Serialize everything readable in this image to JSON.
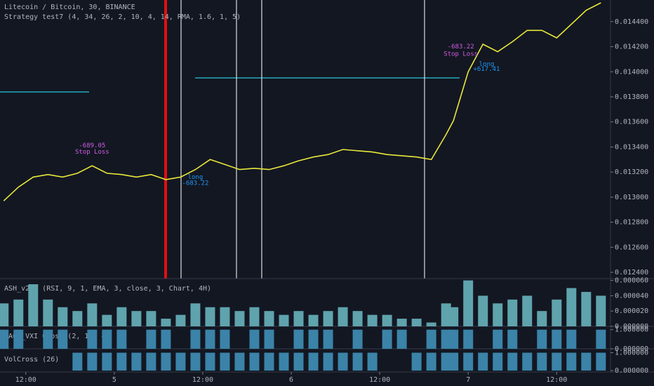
{
  "chart_data": [
    {
      "type": "line",
      "title": "Litecoin / Bitcoin, 30, BINANCE",
      "subtitle": "Strategy test7 (4, 34, 26, 2, 10, 4, 14, RMA, 1.6, 1, 5)",
      "x": [
        -15,
        -13,
        -11,
        -9,
        -7,
        -5,
        -3,
        -1,
        1,
        3,
        5,
        7,
        9,
        11,
        13,
        15,
        17,
        19,
        21,
        23,
        25,
        27,
        29,
        31,
        33,
        35,
        37,
        39,
        41,
        43,
        45,
        46,
        48,
        50,
        52,
        54,
        56,
        58,
        60,
        62,
        64,
        66
      ],
      "values": [
        0.01297,
        0.01308,
        0.01316,
        0.01318,
        0.01316,
        0.01319,
        0.01325,
        0.01319,
        0.01318,
        0.01316,
        0.01318,
        0.01314,
        0.01316,
        0.01322,
        0.0133,
        0.01326,
        0.01322,
        0.01323,
        0.01322,
        0.01325,
        0.01329,
        0.01332,
        0.01334,
        0.01338,
        0.01337,
        0.01336,
        0.01334,
        0.01333,
        0.01332,
        0.0133,
        0.0135,
        0.01361,
        0.014,
        0.01422,
        0.01416,
        0.01424,
        0.01433,
        0.01433,
        0.01427,
        0.01438,
        0.01449,
        0.01455
      ],
      "color": "#e8e83a",
      "xlim": [
        -15.5,
        67.3
      ],
      "ylim": [
        0.01235,
        0.01455
      ],
      "yticks": [
        {
          "value": 0.0124,
          "label": "0.012400"
        },
        {
          "value": 0.0126,
          "label": "0.012600"
        },
        {
          "value": 0.0128,
          "label": "0.012800"
        },
        {
          "value": 0.013,
          "label": "0.013000"
        },
        {
          "value": 0.0132,
          "label": "0.013200"
        },
        {
          "value": 0.0134,
          "label": "0.013400"
        },
        {
          "value": 0.0136,
          "label": "0.013600"
        },
        {
          "value": 0.0138,
          "label": "0.013800"
        },
        {
          "value": 0.014,
          "label": "0.014000"
        },
        {
          "value": 0.0142,
          "label": "0.014200"
        },
        {
          "value": 0.0144,
          "label": "0.014400"
        }
      ],
      "annotations": [
        {
          "text": "-689.05",
          "x": -3,
          "y": 0.01341,
          "color": "#d05ce3"
        },
        {
          "text": "Stop Loss",
          "x": -3,
          "y": 0.01336,
          "color": "#d05ce3"
        },
        {
          "text": "long",
          "x": 11,
          "y": 0.01316,
          "color": "#2196f3"
        },
        {
          "text": "-683.22",
          "x": 11,
          "y": 0.01311,
          "color": "#2196f3"
        },
        {
          "text": "-683.22",
          "x": 47,
          "y": 0.0142,
          "color": "#d05ce3"
        },
        {
          "text": "Stop Loss",
          "x": 47,
          "y": 0.01414,
          "color": "#d05ce3"
        },
        {
          "text": "long",
          "x": 50.5,
          "y": 0.01406,
          "color": "#2196f3"
        },
        {
          "text": "+617.41",
          "x": 50.5,
          "y": 0.01402,
          "color": "#2196f3"
        }
      ]
    },
    {
      "type": "bar",
      "title": "ASH_v2.0 (RSI, 9, 1, EMA, 3, close, 3, Chart, 4H)",
      "x": [
        -15,
        -13,
        -11,
        -9,
        -7,
        -5,
        -3,
        -1,
        1,
        3,
        5,
        7,
        9,
        11,
        13,
        15,
        17,
        19,
        21,
        23,
        25,
        27,
        29,
        31,
        33,
        35,
        37,
        39,
        41,
        43,
        45,
        46,
        48,
        50,
        52,
        54,
        56,
        58,
        60,
        62,
        64,
        66
      ],
      "values": [
        3e-05,
        3.5e-05,
        5.5e-05,
        3.5e-05,
        2.5e-05,
        2e-05,
        3e-05,
        1.5e-05,
        2.5e-05,
        2e-05,
        2e-05,
        1e-05,
        1.5e-05,
        3e-05,
        2.5e-05,
        2.5e-05,
        2e-05,
        2.5e-05,
        2e-05,
        1.5e-05,
        2e-05,
        1.5e-05,
        2e-05,
        2.5e-05,
        2e-05,
        1.5e-05,
        1.5e-05,
        1e-05,
        1e-05,
        5e-06,
        3e-05,
        2.5e-05,
        6e-05,
        4e-05,
        3e-05,
        3.5e-05,
        4e-05,
        2e-05,
        3.5e-05,
        5e-05,
        4.5e-05,
        4e-05
      ],
      "color": "#5fa3ad",
      "xlim": [
        -15.5,
        67.3
      ],
      "ylim": [
        0,
        6.05e-05
      ],
      "yticks": [
        {
          "value": 0,
          "label": "0.000000"
        },
        {
          "value": 2e-05,
          "label": "0.000020"
        },
        {
          "value": 4e-05,
          "label": "0.000040"
        },
        {
          "value": 6e-05,
          "label": "0.000060"
        }
      ]
    },
    {
      "type": "bar",
      "title": "MACD_VXI Cross (2, 10, 4)",
      "x": [
        -15,
        -13,
        -11,
        -9,
        -7,
        -5,
        -3,
        -1,
        1,
        3,
        5,
        7,
        9,
        11,
        13,
        15,
        17,
        19,
        21,
        23,
        25,
        27,
        29,
        31,
        33,
        35,
        37,
        39,
        41,
        43,
        45,
        46,
        48,
        50,
        52,
        54,
        56,
        58,
        60,
        62,
        64,
        66
      ],
      "values": [
        1,
        1,
        0,
        1,
        1,
        0,
        1,
        1,
        1,
        0,
        1,
        1,
        0,
        1,
        1,
        1,
        0,
        1,
        1,
        0,
        1,
        1,
        1,
        0,
        1,
        0,
        1,
        1,
        0,
        1,
        1,
        1,
        1,
        0,
        1,
        1,
        0,
        1,
        1,
        1,
        0,
        1
      ],
      "color": "#3b83a8",
      "xlim": [
        -15.5,
        67.3
      ],
      "ylim": [
        0,
        1.1
      ],
      "yticks": [
        {
          "value": 0,
          "label": "0.000000"
        },
        {
          "value": 1,
          "label": "1.000000"
        }
      ]
    },
    {
      "type": "bar",
      "title": "VolCross (26)",
      "x": [
        -15,
        -13,
        -11,
        -9,
        -7,
        -5,
        -3,
        -1,
        1,
        3,
        5,
        7,
        9,
        11,
        13,
        15,
        17,
        19,
        21,
        23,
        25,
        27,
        29,
        31,
        33,
        35,
        37,
        39,
        41,
        43,
        45,
        46,
        48,
        50,
        52,
        54,
        56,
        58,
        60,
        62,
        64,
        66
      ],
      "values": [
        0,
        0,
        0,
        0,
        0,
        1,
        1,
        1,
        1,
        1,
        1,
        1,
        1,
        1,
        1,
        1,
        1,
        1,
        1,
        1,
        1,
        1,
        1,
        1,
        1,
        1,
        0,
        0,
        1,
        1,
        1,
        1,
        1,
        1,
        1,
        1,
        1,
        1,
        1,
        1,
        1,
        1
      ],
      "color": "#3b83a8",
      "xlim": [
        -15.5,
        67.3
      ],
      "ylim": [
        0,
        1.1
      ],
      "yticks": [
        {
          "value": 0,
          "label": "0.000000"
        },
        {
          "value": 1,
          "label": "1.000000"
        }
      ],
      "xticks": [
        {
          "value": -12,
          "label": "12:00"
        },
        {
          "value": 0,
          "label": "5"
        },
        {
          "value": 12,
          "label": "12:00"
        },
        {
          "value": 24,
          "label": "6"
        },
        {
          "value": 36,
          "label": "12:00"
        },
        {
          "value": 48,
          "label": "7"
        },
        {
          "value": 60,
          "label": "12:00"
        }
      ]
    }
  ]
}
